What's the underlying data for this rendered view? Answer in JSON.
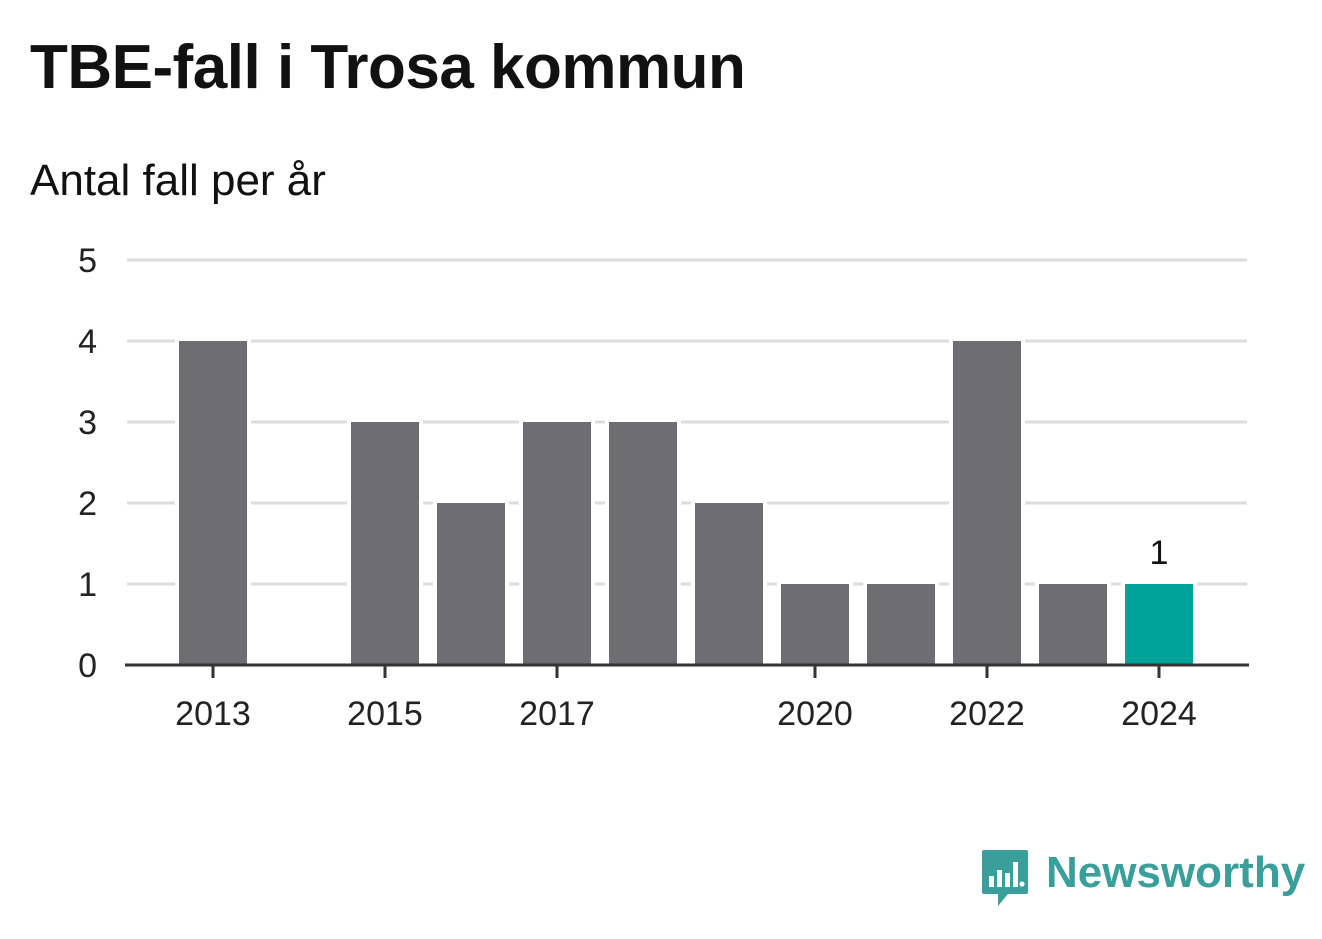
{
  "header": {
    "title": "TBE-fall i Trosa kommun",
    "subtitle": "Antal fall per år"
  },
  "brand": {
    "name": "Newsworthy",
    "icon": "newsworthy-logo-icon",
    "color": "#3a9e9a"
  },
  "chart_data": {
    "type": "bar",
    "title": "TBE-fall i Trosa kommun",
    "subtitle": "Antal fall per år",
    "xlabel": "",
    "ylabel": "",
    "categories": [
      "2013",
      "2014",
      "2015",
      "2016",
      "2017",
      "2018",
      "2019",
      "2020",
      "2021",
      "2022",
      "2023",
      "2024"
    ],
    "values": [
      4,
      0,
      3,
      2,
      3,
      3,
      2,
      1,
      1,
      4,
      1,
      1
    ],
    "x_tick_labels": [
      "2013",
      "2015",
      "2017",
      "2020",
      "2022",
      "2024"
    ],
    "ylim": [
      0,
      5
    ],
    "y_ticks": [
      0,
      1,
      2,
      3,
      4,
      5
    ],
    "grid": true,
    "legend": "none",
    "highlight": {
      "category": "2024",
      "value_label": "1"
    },
    "colors": {
      "bar": "#6e6d72",
      "highlight": "#00a39a",
      "grid": "#dddddd",
      "axis": "#333333",
      "tick_text": "#222222"
    }
  }
}
